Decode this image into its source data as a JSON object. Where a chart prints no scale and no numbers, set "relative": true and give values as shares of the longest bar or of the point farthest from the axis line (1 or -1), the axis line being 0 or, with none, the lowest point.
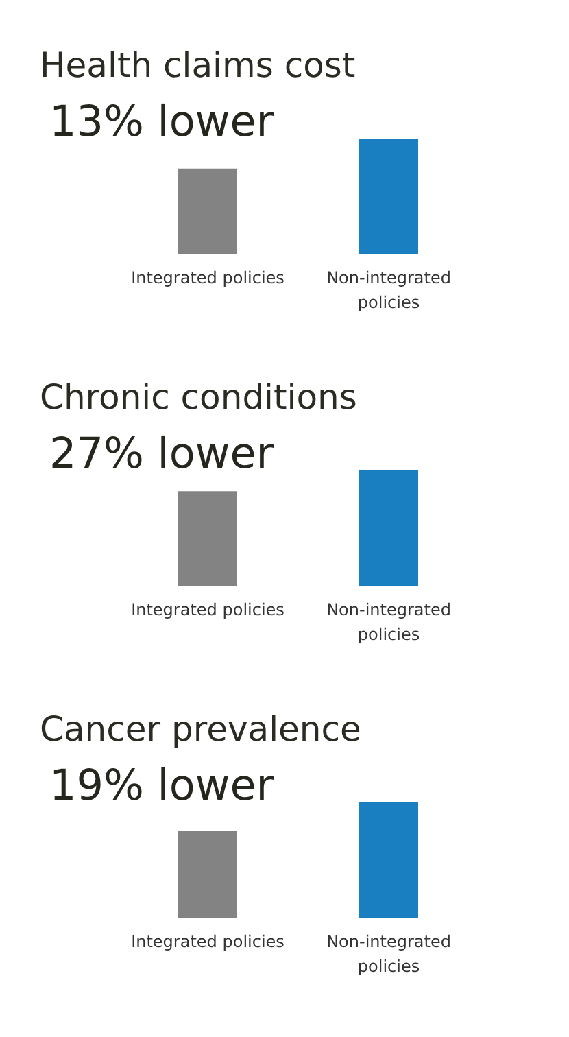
{
  "chart_data": [
    {
      "type": "bar",
      "title": "Health claims cost",
      "categories": [
        "Integrated policies",
        "Non-integrated policies"
      ],
      "values": [
        0.74,
        1
      ],
      "colors": [
        "#838383",
        "#1a7fc0"
      ],
      "relative": true,
      "annotations": [
        "13% lower"
      ]
    },
    {
      "type": "bar",
      "title": "Chronic conditions",
      "categories": [
        "Integrated policies",
        "Non-integrated policies"
      ],
      "values": [
        0.82,
        1
      ],
      "colors": [
        "#838383",
        "#1a7fc0"
      ],
      "relative": true,
      "annotations": [
        "27% lower"
      ]
    },
    {
      "type": "bar",
      "title": "Cancer prevalence",
      "categories": [
        "Integrated policies",
        "Non-integrated policies"
      ],
      "values": [
        0.75,
        1
      ],
      "colors": [
        "#838383",
        "#1a7fc0"
      ],
      "relative": true,
      "annotations": [
        "19% lower"
      ]
    }
  ]
}
